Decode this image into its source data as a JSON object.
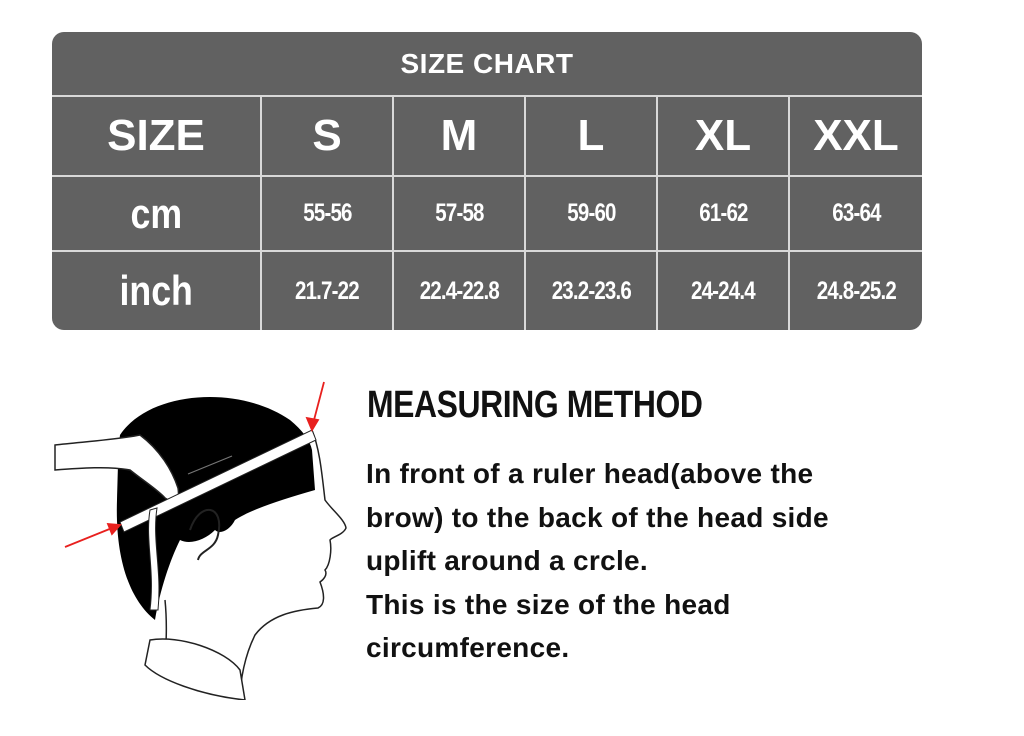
{
  "size_chart": {
    "title": "SIZE CHART",
    "header": [
      "SIZE",
      "S",
      "M",
      "L",
      "XL",
      "XXL"
    ],
    "rows": [
      {
        "label": "cm",
        "values": [
          "55-56",
          "57-58",
          "59-60",
          "61-62",
          "63-64"
        ]
      },
      {
        "label": "inch",
        "values": [
          "21.7-22",
          "22.4-22.8",
          "23.2-23.6",
          "24-24.4",
          "24.8-25.2"
        ]
      }
    ],
    "colors": {
      "cell": "#616161",
      "grid": "#d9d9d9",
      "text": "#ffffff"
    }
  },
  "measuring": {
    "heading": "MEASURING METHOD",
    "lines": [
      "In front of a ruler head(above the",
      "brow) to the back of the head side",
      "uplift around a crcle.",
      "This is the size of the head",
      "circumference."
    ],
    "illustration_icon": "head-measuring-tape-illustration",
    "arrow_color": "#e8201e"
  }
}
